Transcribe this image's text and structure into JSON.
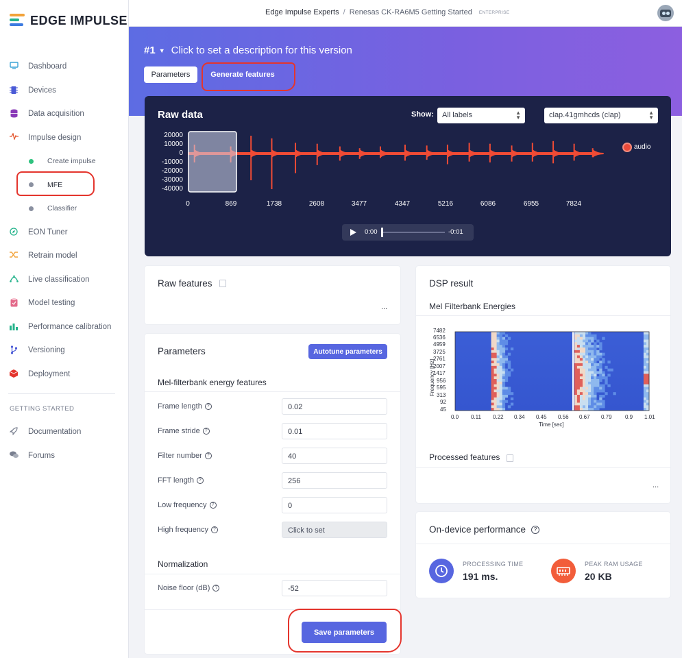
{
  "brand": {
    "name": "EDGE IMPULSE"
  },
  "sidebar": {
    "items": [
      {
        "label": "Dashboard",
        "icon": "monitor-icon",
        "color": "#3aa3d6"
      },
      {
        "label": "Devices",
        "icon": "chip-icon",
        "color": "#4a5ad6"
      },
      {
        "label": "Data acquisition",
        "icon": "database-icon",
        "color": "#8a3ab8"
      },
      {
        "label": "Impulse design",
        "icon": "pulse-icon",
        "color": "#e4552d"
      }
    ],
    "sub_items": [
      {
        "label": "Create impulse",
        "color": "#2ec27e"
      },
      {
        "label": "MFE",
        "color": "#8a90a0"
      },
      {
        "label": "Classifier",
        "color": "#8a90a0"
      }
    ],
    "items2": [
      {
        "label": "EON Tuner",
        "icon": "compass-icon",
        "color": "#24b38b"
      },
      {
        "label": "Retrain model",
        "icon": "shuffle-icon",
        "color": "#f2a33a"
      },
      {
        "label": "Live classification",
        "icon": "signal-icon",
        "color": "#24b38b"
      },
      {
        "label": "Model testing",
        "icon": "clipboard-icon",
        "color": "#e36a8a"
      },
      {
        "label": "Performance calibration",
        "icon": "bar-chart-icon",
        "color": "#24b38b"
      },
      {
        "label": "Versioning",
        "icon": "branch-icon",
        "color": "#4a5ad6"
      },
      {
        "label": "Deployment",
        "icon": "cube-icon",
        "color": "#e4352d"
      }
    ],
    "section_title": "GETTING STARTED",
    "items3": [
      {
        "label": "Documentation",
        "icon": "rocket-icon"
      },
      {
        "label": "Forums",
        "icon": "chat-icon"
      }
    ]
  },
  "header": {
    "org": "Edge Impulse Experts",
    "separator": "/",
    "project": "Renesas CK-RA6M5 Getting Started",
    "badge": "ENTERPRISE"
  },
  "hero": {
    "version": "#1",
    "description": "Click to set a description for this version",
    "tab_parameters": "Parameters",
    "tab_generate": "Generate features"
  },
  "raw_data": {
    "title": "Raw data",
    "show_label": "Show:",
    "label_select": "All labels",
    "sample_select": "clap.41gmhcds (clap)",
    "legend": "audio",
    "y_ticks": [
      "20000",
      "10000",
      "0",
      "-10000",
      "-20000",
      "-30000",
      "-40000"
    ],
    "x_ticks": [
      "0",
      "869",
      "1738",
      "2608",
      "3477",
      "4347",
      "5216",
      "6086",
      "6955",
      "7824"
    ],
    "player_start": "0:00",
    "player_end": "-0:01"
  },
  "raw_features": {
    "title": "Raw features",
    "ellipsis": "..."
  },
  "parameters": {
    "title": "Parameters",
    "autotune": "Autotune parameters",
    "section1": "Mel-filterbank energy features",
    "fields": [
      {
        "label": "Frame length",
        "value": "0.02"
      },
      {
        "label": "Frame stride",
        "value": "0.01"
      },
      {
        "label": "Filter number",
        "value": "40"
      },
      {
        "label": "FFT length",
        "value": "256"
      },
      {
        "label": "Low frequency",
        "value": "0"
      },
      {
        "label": "High frequency",
        "value": "Click to set"
      }
    ],
    "section2": "Normalization",
    "noise_label": "Noise floor (dB)",
    "noise_value": "-52",
    "save": "Save parameters"
  },
  "dsp": {
    "title": "DSP result",
    "subtitle": "Mel Filterbank Energies",
    "y_ticks": [
      "7482",
      "6536",
      "4959",
      "3725",
      "2761",
      "2007",
      "1417",
      "956",
      "595",
      "313",
      "92",
      "45"
    ],
    "x_ticks": [
      "0.0",
      "0.11",
      "0.22",
      "0.34",
      "0.45",
      "0.56",
      "0.67",
      "0.79",
      "0.9",
      "1.01"
    ],
    "y_label": "Frequency [Hz]",
    "x_label": "Time [sec]",
    "processed": "Processed features",
    "ellipsis": "..."
  },
  "performance": {
    "title": "On-device performance",
    "time_label": "PROCESSING TIME",
    "time_value": "191 ms.",
    "ram_label": "PEAK RAM USAGE",
    "ram_value": "20 KB"
  },
  "chart_data": [
    {
      "type": "line",
      "title": "Raw data",
      "series": [
        {
          "name": "audio",
          "color": "#f04b35"
        }
      ],
      "x_ticks": [
        0,
        869,
        1738,
        2608,
        3477,
        4347,
        5216,
        6086,
        6955,
        7824
      ],
      "y_ticks": [
        20000,
        10000,
        0,
        -10000,
        -20000,
        -30000,
        -40000
      ],
      "spike_x": [
        135,
        869,
        1280,
        1700,
        2180,
        2620,
        3080,
        3480,
        3900,
        4400,
        4840,
        5260,
        5700,
        6120,
        6560,
        6980,
        7400,
        7824,
        8200
      ],
      "spike_top": [
        10000,
        8000,
        20000,
        17000,
        12000,
        11000,
        8000,
        6000,
        8000,
        10000,
        9000,
        10000,
        12000,
        11000,
        9000,
        12000,
        14000,
        11000,
        6000
      ],
      "spike_bottom": [
        -10000,
        -10000,
        -30000,
        -40000,
        -22000,
        -13000,
        -8000,
        -6000,
        -5000,
        -8000,
        -7000,
        -12000,
        -9000,
        -10000,
        -9000,
        -9000,
        -11000,
        -8000,
        -4000
      ],
      "xlim": [
        0,
        8300
      ],
      "ylim": [
        -40000,
        20000
      ]
    },
    {
      "type": "heatmap",
      "title": "Mel Filterbank Energies",
      "xlabel": "Time [sec]",
      "ylabel": "Frequency [Hz]",
      "x_ticks": [
        0.0,
        0.11,
        0.22,
        0.34,
        0.45,
        0.56,
        0.67,
        0.79,
        0.9,
        1.01
      ],
      "y_ticks": [
        45,
        92,
        313,
        595,
        956,
        1417,
        2007,
        2761,
        3725,
        4959,
        6536,
        7482
      ],
      "xlim": [
        0.0,
        1.01
      ]
    }
  ]
}
